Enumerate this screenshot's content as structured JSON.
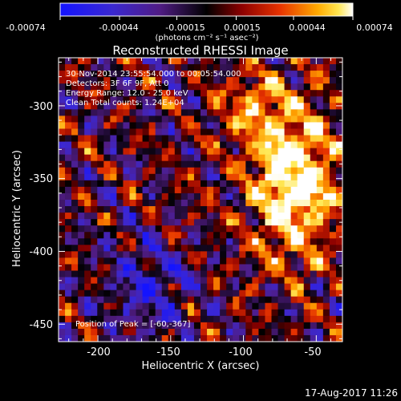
{
  "colorbar": {
    "tick_labels": [
      "-0.00074",
      "-0.00044",
      "-0.00015",
      "0.00015",
      "0.00044",
      "0.00074"
    ],
    "unit_label": "(photons cm⁻² s⁻¹ asec⁻²)",
    "range": [
      -0.00074,
      0.00074
    ]
  },
  "header": {
    "title": "Reconstructed RHESSI Image"
  },
  "info": {
    "line1": "30-Nov-2014 23:55:54.000 to 00:05:54.000",
    "line2": "Detectors: 3F 6F 9F, Att 0",
    "line3": "Energy Range: 12.0 - 25.0 keV",
    "line4": "Clean     Total counts: 1.24E+04"
  },
  "peak_label": "Position of Peak = [-60,-367]",
  "footer": {
    "timestamp": "17-Aug-2017 11:26"
  },
  "chart_data": {
    "type": "heatmap",
    "title": "Reconstructed RHESSI Image",
    "xlabel": "Heliocentric X (arcsec)",
    "ylabel": "Heliocentric Y (arcsec)",
    "xlim": [
      -227,
      -32
    ],
    "ylim": [
      -462,
      -267
    ],
    "x_ticks": [
      -200,
      -150,
      -100,
      -50
    ],
    "y_ticks": [
      -450,
      -400,
      -350,
      -300
    ],
    "color_scale": [
      -0.00074,
      0.00074
    ],
    "peak_position": [
      -60,
      -367
    ],
    "bright_source": {
      "center": [
        -60,
        -367
      ],
      "description": "bright arc extending from about [-90,-300] down to [-70,-390]"
    },
    "grid": false,
    "colors": {
      "negative": "#1a1aff",
      "zero": "#000000",
      "mid": "#c81e00",
      "high": "#ff9600",
      "max": "#ffffff"
    }
  }
}
